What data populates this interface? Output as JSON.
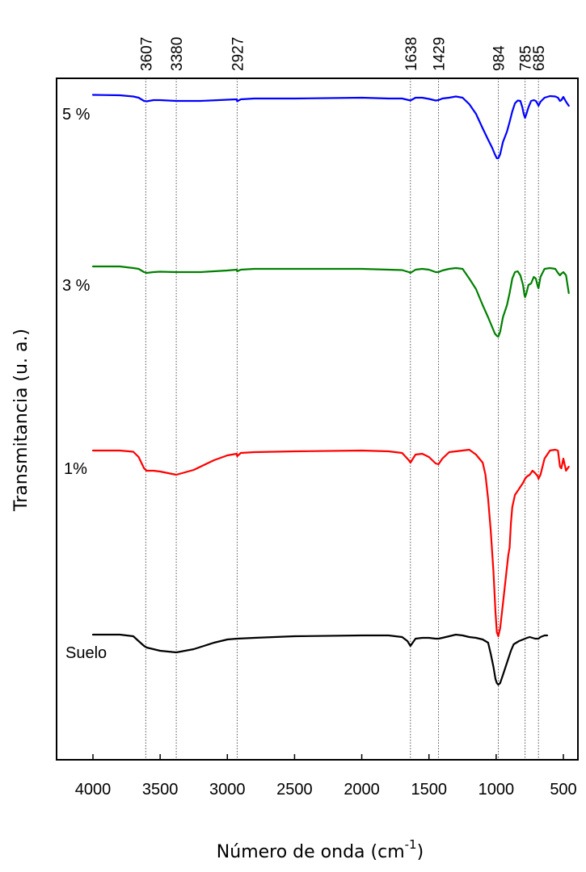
{
  "chart_data": {
    "type": "line",
    "title": "",
    "xlabel": "Número de onda (cm",
    "xlabel_superscript": "-1",
    "xlabel_suffix": ")",
    "ylabel": "Transmitancia (u. a.)",
    "xlim": [
      4000,
      450
    ],
    "x_reversed": true,
    "x_ticks": [
      4000,
      3500,
      3000,
      2500,
      2000,
      1500,
      1000,
      500
    ],
    "y_ticks_shown": false,
    "grid": false,
    "peak_lines": [
      "3607",
      "3380",
      "2927",
      "1638",
      "1429",
      "984",
      "785",
      "685"
    ],
    "series": [
      {
        "name": "5 %",
        "color": "#0000ff",
        "x": [
          4000,
          3800,
          3700,
          3660,
          3620,
          3600,
          3550,
          3500,
          3380,
          3200,
          3000,
          2930,
          2927,
          2900,
          2800,
          2500,
          2000,
          1800,
          1700,
          1650,
          1638,
          1600,
          1550,
          1500,
          1450,
          1429,
          1400,
          1350,
          1300,
          1250,
          1200,
          1150,
          1100,
          1060,
          1030,
          1010,
          995,
          984,
          970,
          950,
          920,
          900,
          880,
          860,
          840,
          820,
          805,
          795,
          785,
          775,
          760,
          740,
          720,
          705,
          690,
          685,
          670,
          640,
          600,
          560,
          540,
          525,
          515,
          500,
          480,
          460
        ],
        "y": [
          3.5,
          3.0,
          1.5,
          0,
          -4,
          -4.5,
          -3,
          -3,
          -4,
          -4,
          -2.5,
          -2,
          -4.5,
          -2,
          -1,
          -1,
          0,
          -1,
          -1,
          -3,
          -3.5,
          0,
          0,
          -1.5,
          -3.5,
          -3,
          -1,
          0,
          1.5,
          0,
          -8,
          -20,
          -38,
          -52,
          -62,
          -70,
          -75,
          -75,
          -70,
          -55,
          -42,
          -30,
          -17,
          -7,
          -3.5,
          -4,
          -12,
          -20,
          -25,
          -20,
          -12,
          -4,
          -3,
          -4,
          -8,
          -10,
          -5,
          0,
          2,
          1.5,
          0,
          -4,
          -3,
          1,
          -5,
          -10
        ]
      },
      {
        "name": "3 %",
        "color": "#008000",
        "x": [
          4000,
          3800,
          3700,
          3660,
          3620,
          3600,
          3550,
          3500,
          3380,
          3200,
          3000,
          2930,
          2927,
          2900,
          2800,
          2500,
          2000,
          1800,
          1700,
          1650,
          1638,
          1600,
          1550,
          1500,
          1450,
          1429,
          1400,
          1350,
          1300,
          1250,
          1200,
          1150,
          1100,
          1060,
          1030,
          1010,
          995,
          984,
          970,
          950,
          920,
          900,
          880,
          860,
          840,
          820,
          800,
          790,
          785,
          775,
          760,
          740,
          720,
          705,
          690,
          685,
          670,
          640,
          600,
          560,
          540,
          525,
          515,
          500,
          480,
          460
        ],
        "y": [
          3,
          3,
          1,
          0,
          -4,
          -5,
          -4,
          -3.5,
          -4,
          -4,
          -2,
          -1,
          -3,
          -1,
          0,
          0,
          0,
          -1,
          -1.5,
          -4,
          -5,
          -1,
          0,
          -1,
          -4,
          -4,
          -2,
          0,
          1,
          0,
          -12,
          -25,
          -45,
          -60,
          -72,
          -80,
          -83,
          -84,
          -78,
          -60,
          -45,
          -30,
          -12,
          -4,
          -3,
          -8,
          -20,
          -32,
          -35,
          -30,
          -20,
          -18,
          -10,
          -12,
          -22,
          -24,
          -10,
          0,
          1,
          0,
          -5,
          -8,
          -6,
          -4,
          -8,
          -30
        ]
      },
      {
        "name": "1%",
        "color": "#ff0000",
        "x": [
          4000,
          3800,
          3700,
          3660,
          3620,
          3600,
          3550,
          3500,
          3380,
          3250,
          3100,
          3000,
          2930,
          2927,
          2900,
          2800,
          2500,
          2000,
          1800,
          1700,
          1650,
          1638,
          1600,
          1550,
          1500,
          1450,
          1429,
          1400,
          1350,
          1300,
          1250,
          1200,
          1150,
          1100,
          1080,
          1060,
          1040,
          1020,
          1005,
          995,
          984,
          970,
          950,
          930,
          910,
          900,
          890,
          880,
          860,
          840,
          820,
          800,
          785,
          770,
          750,
          730,
          710,
          690,
          685,
          670,
          640,
          600,
          560,
          540,
          525,
          515,
          500,
          480,
          460
        ],
        "y": [
          0,
          0,
          -1.5,
          -8,
          -22,
          -25,
          -25,
          -26,
          -30,
          -24,
          -12,
          -6,
          -4,
          -7,
          -3,
          -2,
          -1,
          0,
          -1,
          -3,
          -12,
          -15,
          -5,
          -4,
          -8,
          -16,
          -17,
          -10,
          -2,
          -1,
          0,
          1,
          -5,
          -15,
          -30,
          -60,
          -100,
          -150,
          -200,
          -225,
          -230,
          -220,
          -190,
          -160,
          -130,
          -120,
          -90,
          -70,
          -55,
          -50,
          -45,
          -40,
          -35,
          -32,
          -30,
          -25,
          -28,
          -32,
          -35,
          -30,
          -10,
          0,
          1,
          0,
          -20,
          -22,
          -10,
          -25,
          -20
        ]
      },
      {
        "name": "Suelo",
        "color": "#000000",
        "x": [
          4000,
          3800,
          3700,
          3660,
          3620,
          3600,
          3550,
          3500,
          3380,
          3250,
          3100,
          3000,
          2927,
          2800,
          2500,
          2000,
          1800,
          1700,
          1660,
          1638,
          1600,
          1550,
          1500,
          1450,
          1429,
          1400,
          1350,
          1300,
          1250,
          1200,
          1150,
          1100,
          1060,
          1040,
          1020,
          1005,
          995,
          984,
          970,
          950,
          930,
          910,
          890,
          870,
          850,
          830,
          800,
          785,
          770,
          750,
          730,
          710,
          690,
          685,
          670,
          640,
          620
        ],
        "y": [
          0,
          0,
          -2,
          -8,
          -14,
          -16,
          -18,
          -20,
          -22,
          -18,
          -10,
          -6,
          -5,
          -4,
          -2,
          -1,
          -1,
          -3,
          -8,
          -14,
          -5,
          -4,
          -4,
          -5,
          -5,
          -4,
          -2,
          0,
          -1,
          -3,
          -4,
          -6,
          -10,
          -24,
          -40,
          -55,
          -60,
          -62,
          -60,
          -50,
          -40,
          -30,
          -20,
          -12,
          -10,
          -8,
          -6,
          -5,
          -4,
          -3,
          -4,
          -5,
          -5,
          -5,
          -3,
          -1,
          -1
        ]
      }
    ]
  }
}
